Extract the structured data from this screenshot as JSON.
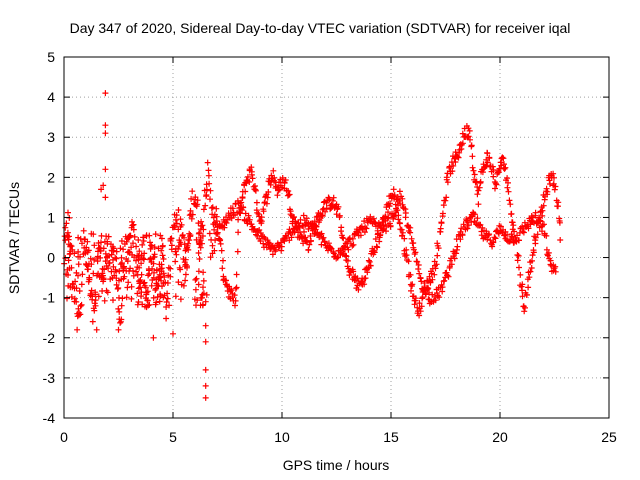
{
  "chart_data": {
    "type": "scatter",
    "title": "Day 347 of 2020, Sidereal Day-to-day VTEC variation (SDTVAR) for receiver iqal",
    "xlabel": "GPS time / hours",
    "ylabel": "SDTVAR / TECUs",
    "xlim": [
      0,
      25
    ],
    "ylim": [
      -4,
      5
    ],
    "xticks": [
      "0",
      "5",
      "10",
      "15",
      "20",
      "25"
    ],
    "yticks": [
      "-4",
      "-3",
      "-2",
      "-1",
      "0",
      "1",
      "2",
      "3",
      "4",
      "5"
    ],
    "grid": true,
    "marker": "+",
    "color": "#ff0000",
    "series": [
      {
        "name": "SDTVAR",
        "approx_track_points": [
          [
            0.0,
            0.0
          ],
          [
            0.1,
            0.6
          ],
          [
            0.2,
            0.9
          ],
          [
            0.3,
            0.2
          ],
          [
            0.4,
            -0.6
          ],
          [
            0.6,
            -1.1
          ],
          [
            0.7,
            -1.3
          ],
          [
            0.8,
            -0.8
          ],
          [
            0.9,
            0.4
          ],
          [
            1.0,
            0.0
          ],
          [
            1.1,
            -0.4
          ],
          [
            1.2,
            -0.9
          ],
          [
            1.4,
            -1.6
          ],
          [
            1.5,
            -0.7
          ],
          [
            1.6,
            0.2
          ],
          [
            1.7,
            -0.2
          ],
          [
            1.8,
            -0.5
          ],
          [
            2.0,
            0.1
          ],
          [
            2.2,
            0.2
          ],
          [
            2.4,
            -0.6
          ],
          [
            2.5,
            -1.0
          ],
          [
            2.6,
            -1.7
          ],
          [
            2.7,
            -0.6
          ],
          [
            2.8,
            0.0
          ],
          [
            3.0,
            0.2
          ],
          [
            3.1,
            0.7
          ],
          [
            3.2,
            0.4
          ],
          [
            3.4,
            -0.3
          ],
          [
            3.5,
            -0.6
          ],
          [
            3.6,
            0.1
          ],
          [
            3.7,
            -0.8
          ],
          [
            3.8,
            -1.3
          ],
          [
            4.0,
            0.3
          ],
          [
            4.1,
            -0.5
          ],
          [
            4.2,
            -1.0
          ],
          [
            4.4,
            -0.3
          ],
          [
            4.5,
            0.1
          ],
          [
            4.6,
            -0.6
          ],
          [
            4.7,
            -1.2
          ],
          [
            4.8,
            -0.2
          ],
          [
            5.0,
            0.6
          ],
          [
            5.2,
            1.2
          ],
          [
            5.3,
            0.5
          ],
          [
            5.4,
            0.7
          ],
          [
            5.5,
            0.2
          ],
          [
            5.6,
            -0.4
          ],
          [
            5.7,
            0.4
          ],
          [
            5.8,
            1.0
          ],
          [
            5.9,
            1.4
          ],
          [
            6.0,
            1.6
          ],
          [
            6.1,
            1.2
          ],
          [
            6.2,
            0.8
          ],
          [
            6.3,
            0.6
          ],
          [
            6.4,
            1.0
          ],
          [
            6.5,
            1.9
          ],
          [
            6.6,
            2.0
          ],
          [
            6.7,
            1.5
          ],
          [
            7.0,
            0.9
          ],
          [
            7.2,
            0.2
          ],
          [
            7.3,
            -0.4
          ],
          [
            7.5,
            -0.7
          ],
          [
            7.6,
            -0.9
          ],
          [
            7.8,
            -1.1
          ],
          [
            7.9,
            -0.8
          ],
          [
            8.0,
            1.0
          ],
          [
            8.3,
            1.8
          ],
          [
            8.6,
            2.2
          ],
          [
            8.8,
            1.5
          ],
          [
            9.0,
            0.9
          ],
          [
            9.2,
            1.3
          ],
          [
            9.4,
            1.8
          ],
          [
            9.6,
            2.1
          ],
          [
            9.8,
            1.6
          ],
          [
            10.0,
            1.9
          ],
          [
            10.2,
            1.8
          ],
          [
            10.5,
            1.0
          ],
          [
            10.8,
            0.6
          ],
          [
            11.0,
            0.5
          ],
          [
            11.2,
            0.3
          ],
          [
            11.5,
            0.8
          ],
          [
            11.8,
            1.1
          ],
          [
            12.0,
            1.3
          ],
          [
            12.3,
            1.4
          ],
          [
            12.6,
            1.1
          ],
          [
            12.8,
            0.4
          ],
          [
            13.0,
            -0.2
          ],
          [
            13.3,
            -0.5
          ],
          [
            13.5,
            -0.7
          ],
          [
            13.7,
            -0.6
          ],
          [
            14.0,
            -0.2
          ],
          [
            14.3,
            0.3
          ],
          [
            14.6,
            0.8
          ],
          [
            14.9,
            1.4
          ],
          [
            15.1,
            1.6
          ],
          [
            15.3,
            1.2
          ],
          [
            15.5,
            0.6
          ],
          [
            15.7,
            0.1
          ],
          [
            15.9,
            -0.6
          ],
          [
            16.1,
            -1.1
          ],
          [
            16.3,
            -1.3
          ],
          [
            16.5,
            -0.9
          ],
          [
            16.8,
            -0.5
          ],
          [
            17.0,
            -0.3
          ],
          [
            17.2,
            0.4
          ],
          [
            17.4,
            1.2
          ],
          [
            17.6,
            2.0
          ],
          [
            17.8,
            2.3
          ],
          [
            18.0,
            2.5
          ],
          [
            18.2,
            2.8
          ],
          [
            18.4,
            3.1
          ],
          [
            18.6,
            3.2
          ],
          [
            18.8,
            2.1
          ],
          [
            19.0,
            1.5
          ],
          [
            19.2,
            2.2
          ],
          [
            19.4,
            2.5
          ],
          [
            19.6,
            2.3
          ],
          [
            19.8,
            1.8
          ],
          [
            20.0,
            2.3
          ],
          [
            20.2,
            2.4
          ],
          [
            20.4,
            1.6
          ],
          [
            20.6,
            0.8
          ],
          [
            20.8,
            0.2
          ],
          [
            21.0,
            -0.8
          ],
          [
            21.1,
            -1.3
          ],
          [
            21.3,
            -0.6
          ],
          [
            21.6,
            0.5
          ],
          [
            21.9,
            1.1
          ],
          [
            22.1,
            1.6
          ],
          [
            22.3,
            2.0
          ],
          [
            22.5,
            1.9
          ],
          [
            22.7,
            1.1
          ],
          [
            22.8,
            0.4
          ]
        ],
        "approx_secondary_track": [
          [
            6.7,
            0.3
          ],
          [
            7.0,
            0.6
          ],
          [
            7.5,
            1.0
          ],
          [
            8.0,
            1.3
          ],
          [
            8.5,
            0.9
          ],
          [
            9.0,
            0.5
          ],
          [
            9.5,
            0.2
          ],
          [
            10.0,
            0.3
          ],
          [
            10.5,
            0.7
          ],
          [
            11.0,
            0.9
          ],
          [
            11.5,
            0.7
          ],
          [
            12.0,
            0.3
          ],
          [
            12.5,
            0.1
          ],
          [
            13.0,
            0.3
          ],
          [
            13.5,
            0.6
          ],
          [
            14.0,
            0.9
          ],
          [
            14.5,
            0.7
          ],
          [
            15.0,
            0.9
          ],
          [
            15.4,
            1.5
          ],
          [
            15.7,
            1.0
          ],
          [
            16.0,
            0.3
          ],
          [
            16.4,
            -0.6
          ],
          [
            16.8,
            -1.0
          ],
          [
            17.2,
            -0.9
          ],
          [
            17.6,
            -0.4
          ],
          [
            18.0,
            0.3
          ],
          [
            18.4,
            0.8
          ],
          [
            18.8,
            1.0
          ],
          [
            19.2,
            0.6
          ],
          [
            19.6,
            0.4
          ],
          [
            20.0,
            0.7
          ],
          [
            20.4,
            0.5
          ],
          [
            20.8,
            0.5
          ],
          [
            21.2,
            0.8
          ],
          [
            21.6,
            1.0
          ],
          [
            22.0,
            0.7
          ],
          [
            22.3,
            -0.2
          ],
          [
            22.6,
            -0.3
          ]
        ],
        "outliers": [
          [
            1.9,
            4.1
          ],
          [
            1.9,
            3.3
          ],
          [
            1.9,
            3.1
          ],
          [
            1.9,
            2.2
          ],
          [
            1.7,
            1.7
          ],
          [
            1.8,
            1.8
          ],
          [
            1.9,
            1.5
          ],
          [
            6.5,
            -1.7
          ],
          [
            6.5,
            -2.1
          ],
          [
            6.5,
            -2.8
          ],
          [
            6.5,
            -3.2
          ],
          [
            6.5,
            -3.5
          ],
          [
            5.0,
            -1.9
          ],
          [
            4.1,
            -2.0
          ],
          [
            0.6,
            -1.8
          ],
          [
            1.5,
            -1.8
          ],
          [
            2.5,
            -1.8
          ]
        ]
      }
    ]
  }
}
